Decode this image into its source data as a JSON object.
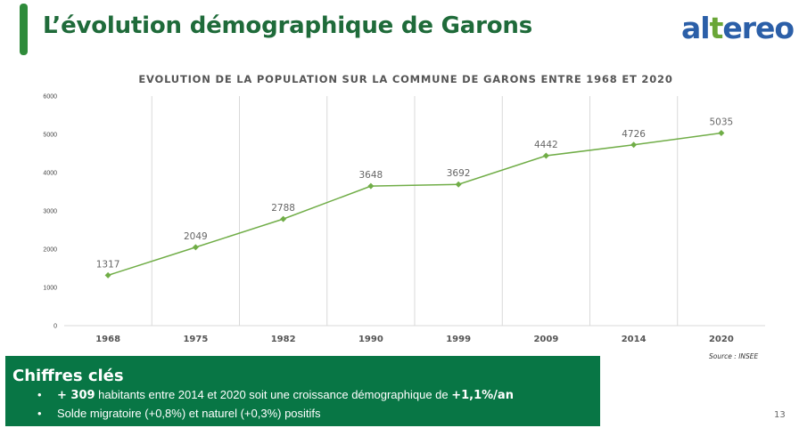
{
  "header": {
    "title": "L’évolution démographique de Garons",
    "logo": {
      "part1": "al",
      "highlight": "t",
      "part2": "ereo",
      "color_main": "#2b5fa8",
      "color_highlight": "#6aa637"
    }
  },
  "chart_data": {
    "type": "line",
    "title": "EVOLUTION DE LA POPULATION SUR LA COMMUNE DE GARONS ENTRE 1968 ET 2020",
    "categories": [
      "1968",
      "1975",
      "1982",
      "1990",
      "1999",
      "2009",
      "2014",
      "2020"
    ],
    "series": [
      {
        "values": [
          1317,
          2049,
          2788,
          3648,
          3692,
          4442,
          4726,
          5035
        ],
        "color": "#70ad47"
      }
    ],
    "data_labels": true,
    "ylim": [
      0,
      6000
    ],
    "yticks": [
      0,
      1000,
      2000,
      3000,
      4000,
      5000,
      6000
    ],
    "grid": "vertical",
    "legend": "none",
    "source": "Source : INSEE"
  },
  "key_figures": {
    "title": "Chiffres clés",
    "items": [
      {
        "strong_start": "+ 309",
        "text": " habitants entre 2014 et 2020 soit une croissance démographique de ",
        "strong_end": "+1,1%/an"
      },
      {
        "text": "Solde migratoire (+0,8%) et naturel (+0,3%) positifs"
      }
    ],
    "background": "#087645"
  },
  "page_number": "13"
}
